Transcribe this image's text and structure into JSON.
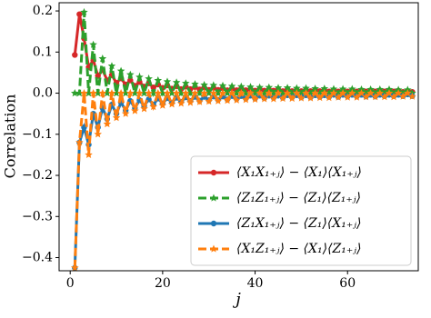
{
  "chart_data": {
    "type": "line",
    "x_label": "j",
    "y_label": "Correlation",
    "xlim": [
      -2.4,
      75.3
    ],
    "xticks": [
      0,
      20,
      40,
      60
    ],
    "ylim": [
      -0.432,
      0.22
    ],
    "yticks": [
      {
        "value": -0.4,
        "label": "−0.4"
      },
      {
        "value": -0.3,
        "label": "−0.3"
      },
      {
        "value": -0.2,
        "label": "−0.2"
      },
      {
        "value": -0.1,
        "label": "−0.1"
      },
      {
        "value": 0,
        "label": "0.0"
      },
      0.1,
      0.2
    ],
    "legend_position": "lower right",
    "x": [
      1,
      2,
      3,
      4,
      5,
      6,
      7,
      8,
      9,
      10,
      11,
      12,
      13,
      14,
      15,
      16,
      17,
      18,
      19,
      20,
      21,
      22,
      23,
      24,
      25,
      26,
      27,
      28,
      29,
      30,
      31,
      32,
      33,
      34,
      35,
      36,
      37,
      38,
      39,
      40,
      41,
      42,
      43,
      44,
      45,
      46,
      47,
      48,
      49,
      50,
      51,
      52,
      53,
      54,
      55,
      56,
      57,
      58,
      59,
      60,
      61,
      62,
      63,
      64,
      65,
      66,
      67,
      68,
      69,
      70,
      71,
      72,
      73,
      74
    ],
    "series": [
      {
        "name": "⟨X₁X₁₊ⱼ⟩ − ⟨X₁⟩⟨X₁₊ⱼ⟩",
        "color": "#d62728",
        "dash": false,
        "marker": "circle",
        "values": [
          0.093,
          0.192,
          0.133,
          0.063,
          0.08,
          0.042,
          0.057,
          0.031,
          0.044,
          0.025,
          0.036,
          0.021,
          0.031,
          0.018,
          0.027,
          0.016,
          0.024,
          0.014,
          0.021,
          0.013,
          0.019,
          0.011,
          0.017,
          0.01,
          0.016,
          0.01,
          0.015,
          0.009,
          0.014,
          0.008,
          0.013,
          0.008,
          0.012,
          0.007,
          0.011,
          0.007,
          0.011,
          0.007,
          0.01,
          0.006,
          0.01,
          0.006,
          0.009,
          0.006,
          0.009,
          0.005,
          0.009,
          0.005,
          0.008,
          0.005,
          0.008,
          0.005,
          0.008,
          0.005,
          0.007,
          0.004,
          0.007,
          0.004,
          0.007,
          0.004,
          0.007,
          0.004,
          0.006,
          0.004,
          0.006,
          0.004,
          0.006,
          0.004,
          0.006,
          0.004,
          0.006,
          0.003,
          0.005,
          0.003
        ]
      },
      {
        "name": "⟨Z₁Z₁₊ⱼ⟩ − ⟨Z₁⟩⟨Z₁₊ⱼ⟩",
        "color": "#2ca02c",
        "dash": true,
        "marker": "star",
        "values": [
          0,
          0,
          0.197,
          0,
          0.118,
          0,
          0.084,
          0,
          0.066,
          0,
          0.054,
          0,
          0.045,
          0,
          0.039,
          0,
          0.035,
          0,
          0.031,
          0,
          0.028,
          0,
          0.026,
          0,
          0.024,
          0,
          0.022,
          0,
          0.02,
          0,
          0.019,
          0,
          0.018,
          0,
          0.017,
          0,
          0.016,
          0,
          0.015,
          0,
          0.014,
          0,
          0.014,
          0,
          0.013,
          0,
          0.013,
          0,
          0.012,
          0,
          0.012,
          0,
          0.011,
          0,
          0.011,
          0,
          0.01,
          0,
          0.01,
          0,
          0.01,
          0,
          0.009,
          0,
          0.009,
          0,
          0.009,
          0,
          0.009,
          0,
          0.008,
          0,
          0.008,
          0
        ]
      },
      {
        "name": "⟨Z₁X₁₊ⱼ⟩ − ⟨Z₁⟩⟨X₁₊ⱼ⟩",
        "color": "#1f77b4",
        "dash": false,
        "marker": "circle",
        "values": [
          -0.425,
          -0.12,
          -0.083,
          -0.125,
          -0.05,
          -0.083,
          -0.036,
          -0.063,
          -0.028,
          -0.05,
          -0.023,
          -0.042,
          -0.019,
          -0.036,
          -0.017,
          -0.031,
          -0.015,
          -0.028,
          -0.013,
          -0.025,
          -0.012,
          -0.023,
          -0.011,
          -0.021,
          -0.01,
          -0.019,
          -0.009,
          -0.018,
          -0.009,
          -0.017,
          -0.008,
          -0.016,
          -0.008,
          -0.015,
          -0.007,
          -0.014,
          -0.007,
          -0.013,
          -0.006,
          -0.013,
          -0.006,
          -0.012,
          -0.006,
          -0.011,
          -0.006,
          -0.011,
          -0.005,
          -0.01,
          -0.005,
          -0.01,
          -0.005,
          -0.01,
          -0.005,
          -0.009,
          -0.005,
          -0.009,
          -0.004,
          -0.009,
          -0.004,
          -0.008,
          -0.004,
          -0.008,
          -0.004,
          -0.008,
          -0.004,
          -0.008,
          -0.004,
          -0.007,
          -0.004,
          -0.007,
          -0.004,
          -0.007,
          -0.003,
          -0.007
        ]
      },
      {
        "name": "⟨X₁Z₁₊ⱼ⟩ − ⟨X₁⟩⟨Z₁₊ⱼ⟩",
        "color": "#ff7f0e",
        "dash": true,
        "marker": "star",
        "values": [
          -0.425,
          -0.12,
          0,
          -0.15,
          0,
          -0.1,
          0,
          -0.075,
          0,
          -0.06,
          0,
          -0.05,
          0,
          -0.043,
          0,
          -0.038,
          0,
          -0.033,
          0,
          -0.03,
          0,
          -0.027,
          0,
          -0.025,
          0,
          -0.023,
          0,
          -0.021,
          0,
          -0.02,
          0,
          -0.019,
          0,
          -0.018,
          0,
          -0.017,
          0,
          -0.016,
          0,
          -0.015,
          0,
          -0.014,
          0,
          -0.014,
          0,
          -0.013,
          0,
          -0.013,
          0,
          -0.012,
          0,
          -0.012,
          0,
          -0.011,
          0,
          -0.011,
          0,
          -0.01,
          0,
          -0.01,
          0,
          -0.01,
          0,
          -0.009,
          0,
          -0.009,
          0,
          -0.009,
          0,
          -0.009,
          0,
          -0.008,
          0,
          -0.008
        ]
      }
    ]
  }
}
